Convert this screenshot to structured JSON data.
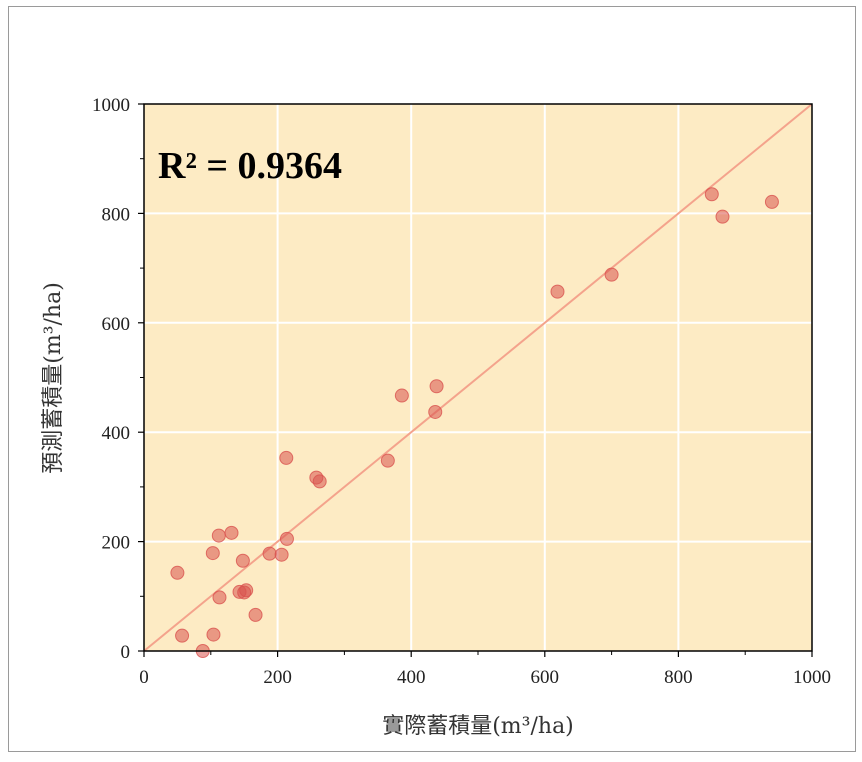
{
  "chart_data": {
    "type": "scatter",
    "title": "",
    "annotation": "R² = 0.9364",
    "xlabel": "實際蓄積量(m³/ha)",
    "ylabel": "預測蓄積量(m³/ha)",
    "xlim": [
      0,
      1000
    ],
    "ylim": [
      0,
      1000
    ],
    "xticks": [
      "0",
      "200",
      "400",
      "600",
      "800",
      "1000"
    ],
    "yticks": [
      "0",
      "200",
      "400",
      "600",
      "800",
      "1000"
    ],
    "grid": true,
    "plot_background": "#fdebc4",
    "point_color": "#d9534f",
    "line_color": "#f4a38c",
    "reference_line": {
      "x": [
        0,
        1000
      ],
      "y": [
        0,
        1000
      ]
    },
    "points": [
      {
        "x": 50,
        "y": 143
      },
      {
        "x": 57,
        "y": 28
      },
      {
        "x": 88,
        "y": 0
      },
      {
        "x": 103,
        "y": 179
      },
      {
        "x": 104,
        "y": 30
      },
      {
        "x": 112,
        "y": 211
      },
      {
        "x": 113,
        "y": 98
      },
      {
        "x": 131,
        "y": 216
      },
      {
        "x": 143,
        "y": 108
      },
      {
        "x": 148,
        "y": 165
      },
      {
        "x": 150,
        "y": 107
      },
      {
        "x": 153,
        "y": 111
      },
      {
        "x": 167,
        "y": 66
      },
      {
        "x": 188,
        "y": 178
      },
      {
        "x": 206,
        "y": 176
      },
      {
        "x": 213,
        "y": 353
      },
      {
        "x": 214,
        "y": 205
      },
      {
        "x": 258,
        "y": 317
      },
      {
        "x": 263,
        "y": 310
      },
      {
        "x": 365,
        "y": 348
      },
      {
        "x": 386,
        "y": 467
      },
      {
        "x": 436,
        "y": 437
      },
      {
        "x": 438,
        "y": 484
      },
      {
        "x": 619,
        "y": 657
      },
      {
        "x": 700,
        "y": 688
      },
      {
        "x": 850,
        "y": 835
      },
      {
        "x": 866,
        "y": 794
      },
      {
        "x": 940,
        "y": 821
      }
    ]
  }
}
